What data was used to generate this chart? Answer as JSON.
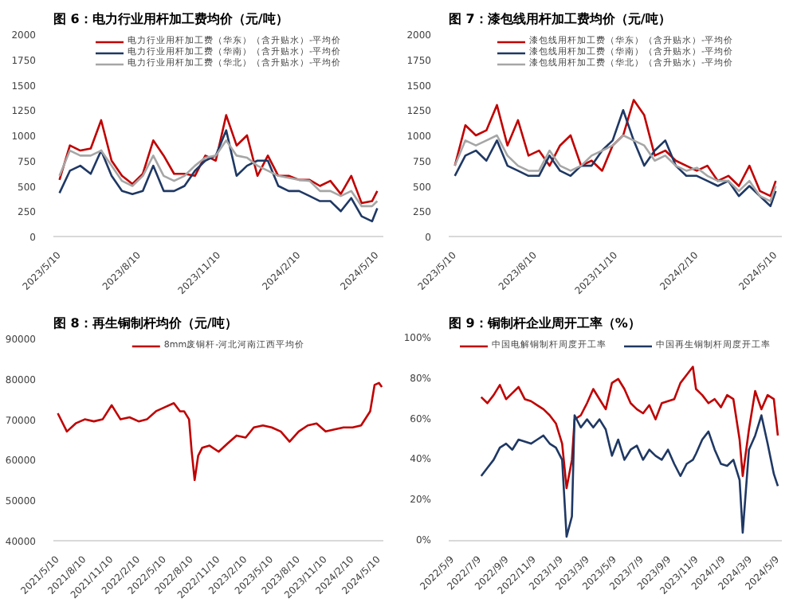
{
  "chart_data": [
    {
      "type": "line",
      "title": "图 6：电力行业用杆加工费均价（元/吨）",
      "legend": "top",
      "x": [
        "2023-05-10",
        "2023-05-22",
        "2023-06-03",
        "2023-06-15",
        "2023-06-27",
        "2023-07-09",
        "2023-07-21",
        "2023-08-02",
        "2023-08-14",
        "2023-08-26",
        "2023-09-07",
        "2023-09-19",
        "2023-10-01",
        "2023-10-13",
        "2023-10-25",
        "2023-11-06",
        "2023-11-18",
        "2023-11-30",
        "2023-12-12",
        "2023-12-24",
        "2024-01-05",
        "2024-01-17",
        "2024-01-29",
        "2024-02-10",
        "2024-02-22",
        "2024-03-05",
        "2024-03-17",
        "2024-03-29",
        "2024-04-10",
        "2024-04-22",
        "2024-05-04",
        "2024-05-10"
      ],
      "xlim": [
        "2023-05-03",
        "2024-05-17"
      ],
      "xticks": [
        {
          "value": "2023-05-10",
          "label": "2023/5/10"
        },
        {
          "value": "2023-08-10",
          "label": "2023/8/10"
        },
        {
          "value": "2023-11-10",
          "label": "2023/11/10"
        },
        {
          "value": "2024-02-10",
          "label": "2024/2/10"
        },
        {
          "value": "2024-05-10",
          "label": "2024/5/10"
        }
      ],
      "ylim": [
        0,
        2000
      ],
      "yticks": [
        0,
        250,
        500,
        750,
        1000,
        1250,
        1500,
        1750,
        2000
      ],
      "series": [
        {
          "name": "电力行业用杆加工费（华东）（含升贴水）-平均价",
          "color": "#c00000",
          "values": [
            560,
            900,
            850,
            870,
            1150,
            750,
            600,
            520,
            620,
            950,
            800,
            620,
            620,
            600,
            800,
            750,
            1200,
            900,
            1000,
            600,
            800,
            600,
            600,
            560,
            560,
            500,
            550,
            420,
            600,
            330,
            350,
            450
          ]
        },
        {
          "name": "电力行业用杆加工费（华南）（含升贴水）-平均价",
          "color": "#1f3864",
          "values": [
            430,
            650,
            700,
            620,
            850,
            600,
            450,
            420,
            450,
            700,
            450,
            450,
            500,
            650,
            750,
            800,
            1050,
            600,
            700,
            750,
            750,
            500,
            450,
            450,
            400,
            350,
            350,
            250,
            380,
            200,
            150,
            280
          ]
        },
        {
          "name": "电力行业用杆加工费（华北）（含升贴水）-平均价",
          "color": "#a6a6a6",
          "values": [
            600,
            850,
            800,
            800,
            850,
            700,
            550,
            500,
            600,
            800,
            600,
            550,
            600,
            700,
            780,
            800,
            950,
            800,
            780,
            700,
            650,
            600,
            580,
            560,
            550,
            450,
            450,
            400,
            450,
            300,
            300,
            350
          ]
        }
      ]
    },
    {
      "type": "line",
      "title": "图 7：漆包线用杆加工费均价（元/吨）",
      "legend": "top",
      "x": [
        "2023-05-10",
        "2023-05-22",
        "2023-06-03",
        "2023-06-15",
        "2023-06-27",
        "2023-07-09",
        "2023-07-21",
        "2023-08-02",
        "2023-08-14",
        "2023-08-26",
        "2023-09-07",
        "2023-09-19",
        "2023-10-01",
        "2023-10-13",
        "2023-10-25",
        "2023-11-06",
        "2023-11-18",
        "2023-11-30",
        "2023-12-12",
        "2023-12-24",
        "2024-01-05",
        "2024-01-17",
        "2024-01-29",
        "2024-02-10",
        "2024-02-22",
        "2024-03-05",
        "2024-03-17",
        "2024-03-29",
        "2024-04-10",
        "2024-04-22",
        "2024-05-04",
        "2024-05-10"
      ],
      "xlim": [
        "2023-05-03",
        "2024-05-17"
      ],
      "xticks": [
        {
          "value": "2023-05-10",
          "label": "2023/5/10"
        },
        {
          "value": "2023-08-10",
          "label": "2023/8/10"
        },
        {
          "value": "2023-11-10",
          "label": "2023/11/10"
        },
        {
          "value": "2024-02-10",
          "label": "2024/2/10"
        },
        {
          "value": "2024-05-10",
          "label": "2024/5/10"
        }
      ],
      "ylim": [
        0,
        2000
      ],
      "yticks": [
        0,
        250,
        500,
        750,
        1000,
        1250,
        1500,
        1750,
        2000
      ],
      "series": [
        {
          "name": "漆包线用杆加工费（华东）（含升贴水）-平均价",
          "color": "#c00000",
          "values": [
            700,
            1100,
            1000,
            1050,
            1300,
            900,
            1150,
            800,
            850,
            700,
            900,
            1000,
            700,
            750,
            650,
            900,
            1000,
            1350,
            1200,
            800,
            850,
            750,
            700,
            650,
            700,
            550,
            600,
            500,
            700,
            450,
            400,
            550
          ]
        },
        {
          "name": "漆包线用杆加工费（华南）（含升贴水）-平均价",
          "color": "#1f3864",
          "values": [
            600,
            800,
            850,
            750,
            950,
            700,
            650,
            600,
            600,
            800,
            650,
            600,
            700,
            700,
            850,
            950,
            1250,
            950,
            700,
            850,
            950,
            700,
            600,
            600,
            550,
            500,
            550,
            400,
            500,
            400,
            300,
            450
          ]
        },
        {
          "name": "漆包线用杆加工费（华北）（含升贴水）-平均价",
          "color": "#a6a6a6",
          "values": [
            700,
            950,
            900,
            950,
            1000,
            800,
            700,
            650,
            650,
            850,
            700,
            650,
            700,
            800,
            850,
            900,
            1000,
            950,
            900,
            750,
            800,
            700,
            650,
            680,
            600,
            550,
            550,
            450,
            550,
            400,
            350,
            500
          ]
        }
      ]
    },
    {
      "type": "line",
      "title": "图 8：再生铜制杆均价（元/吨）",
      "legend": "top",
      "x": [
        "2021-05-10",
        "2021-06-10",
        "2021-07-10",
        "2021-08-10",
        "2021-09-10",
        "2021-10-10",
        "2021-11-10",
        "2021-12-10",
        "2022-01-10",
        "2022-02-10",
        "2022-03-10",
        "2022-04-10",
        "2022-05-10",
        "2022-06-10",
        "2022-07-01",
        "2022-07-15",
        "2022-08-01",
        "2022-08-10",
        "2022-08-20",
        "2022-09-01",
        "2022-09-15",
        "2022-10-10",
        "2022-11-10",
        "2022-12-10",
        "2023-01-10",
        "2023-02-10",
        "2023-03-10",
        "2023-04-10",
        "2023-05-10",
        "2023-06-10",
        "2023-07-10",
        "2023-08-10",
        "2023-09-10",
        "2023-10-10",
        "2023-11-10",
        "2023-12-10",
        "2024-01-10",
        "2024-02-10",
        "2024-03-10",
        "2024-04-10",
        "2024-04-25",
        "2024-05-10",
        "2024-05-20"
      ],
      "xlim": [
        "2021-04-25",
        "2024-05-25"
      ],
      "xticks": [
        {
          "value": "2021-05-10",
          "label": "2021/5/10"
        },
        {
          "value": "2021-08-10",
          "label": "2021/8/10"
        },
        {
          "value": "2021-11-10",
          "label": "2021/11/10"
        },
        {
          "value": "2022-02-10",
          "label": "2022/2/10"
        },
        {
          "value": "2022-05-10",
          "label": "2022/5/10"
        },
        {
          "value": "2022-08-10",
          "label": "2022/8/10"
        },
        {
          "value": "2022-11-10",
          "label": "2022/11/10"
        },
        {
          "value": "2023-02-10",
          "label": "2023/2/10"
        },
        {
          "value": "2023-05-10",
          "label": "2023/5/10"
        },
        {
          "value": "2023-08-10",
          "label": "2023/8/10"
        },
        {
          "value": "2023-11-10",
          "label": "2023/11/10"
        },
        {
          "value": "2024-02-10",
          "label": "2024/2/10"
        },
        {
          "value": "2024-05-10",
          "label": "2024/5/10"
        }
      ],
      "ylim": [
        40000,
        90000
      ],
      "yticks": [
        40000,
        50000,
        60000,
        70000,
        80000,
        90000
      ],
      "series": [
        {
          "name": "8mm废铜杆-河北河南江西平均价",
          "color": "#c00000",
          "values": [
            71500,
            67000,
            69000,
            70000,
            69500,
            70000,
            73500,
            70000,
            70500,
            69500,
            70000,
            72000,
            73000,
            74000,
            72000,
            72000,
            70000,
            62000,
            55000,
            61000,
            63000,
            63500,
            62000,
            64000,
            66000,
            65500,
            68000,
            68500,
            68000,
            67000,
            64500,
            67000,
            68500,
            69000,
            67000,
            67500,
            68000,
            68000,
            68500,
            72000,
            78500,
            79000,
            78000
          ]
        }
      ]
    },
    {
      "type": "line",
      "title": "图 9：铜制杆企业周开工率（%）",
      "legend": "top",
      "x": [
        "2022-07-12",
        "2022-07-26",
        "2022-08-09",
        "2022-08-23",
        "2022-09-06",
        "2022-09-20",
        "2022-10-04",
        "2022-10-18",
        "2022-11-01",
        "2022-11-15",
        "2022-11-29",
        "2022-12-13",
        "2022-12-27",
        "2023-01-10",
        "2023-01-20",
        "2023-02-01",
        "2023-02-07",
        "2023-02-21",
        "2023-03-07",
        "2023-03-21",
        "2023-04-04",
        "2023-04-18",
        "2023-05-02",
        "2023-05-16",
        "2023-05-30",
        "2023-06-13",
        "2023-06-27",
        "2023-07-11",
        "2023-07-25",
        "2023-08-08",
        "2023-08-22",
        "2023-09-05",
        "2023-09-19",
        "2023-10-03",
        "2023-10-17",
        "2023-10-31",
        "2023-11-07",
        "2023-11-21",
        "2023-12-05",
        "2023-12-19",
        "2024-01-02",
        "2024-01-16",
        "2024-01-30",
        "2024-02-13",
        "2024-02-20",
        "2024-03-05",
        "2024-03-19",
        "2024-04-02",
        "2024-04-16",
        "2024-04-30",
        "2024-05-09"
      ],
      "xlim": [
        "2022-04-30",
        "2024-05-18"
      ],
      "xticks": [
        {
          "value": "2022-05-09",
          "label": "2022/5/9"
        },
        {
          "value": "2022-07-09",
          "label": "2022/7/9"
        },
        {
          "value": "2022-09-09",
          "label": "2022/9/9"
        },
        {
          "value": "2022-11-09",
          "label": "2022/11/9"
        },
        {
          "value": "2023-01-09",
          "label": "2023/1/9"
        },
        {
          "value": "2023-03-09",
          "label": "2023/3/9"
        },
        {
          "value": "2023-05-09",
          "label": "2023/5/9"
        },
        {
          "value": "2023-07-09",
          "label": "2023/7/9"
        },
        {
          "value": "2023-09-09",
          "label": "2023/9/9"
        },
        {
          "value": "2023-11-09",
          "label": "2023/11/9"
        },
        {
          "value": "2024-01-09",
          "label": "2024/1/9"
        },
        {
          "value": "2024-03-09",
          "label": "2024/3/9"
        },
        {
          "value": "2024-05-09",
          "label": "2024/5/9"
        }
      ],
      "ylim": [
        0,
        100
      ],
      "yticks": [
        {
          "value": 0,
          "label": "0%"
        },
        {
          "value": 20,
          "label": "20%"
        },
        {
          "value": 40,
          "label": "40%"
        },
        {
          "value": 60,
          "label": "60%"
        },
        {
          "value": 80,
          "label": "80%"
        },
        {
          "value": 100,
          "label": "100%"
        }
      ],
      "series": [
        {
          "name": "中国电解铜制杆周度开工率",
          "color": "#c00000",
          "values": [
            71,
            68,
            72,
            77,
            70,
            73,
            76,
            70,
            69,
            67,
            65,
            62,
            58,
            48,
            26,
            40,
            60,
            62,
            68,
            75,
            70,
            65,
            78,
            80,
            75,
            68,
            65,
            63,
            67,
            60,
            68,
            69,
            70,
            78,
            82,
            86,
            75,
            72,
            68,
            70,
            66,
            72,
            70,
            50,
            32,
            55,
            74,
            65,
            72,
            70,
            52
          ]
        },
        {
          "name": "中国再生铜制杆周度开工率",
          "color": "#1f3864",
          "values": [
            32,
            36,
            40,
            46,
            48,
            45,
            50,
            49,
            48,
            50,
            52,
            48,
            46,
            40,
            2,
            12,
            62,
            56,
            60,
            56,
            60,
            55,
            42,
            50,
            40,
            45,
            47,
            40,
            45,
            42,
            40,
            45,
            38,
            32,
            38,
            40,
            43,
            50,
            54,
            45,
            38,
            37,
            40,
            30,
            4,
            45,
            52,
            62,
            48,
            33,
            27
          ]
        }
      ]
    }
  ]
}
